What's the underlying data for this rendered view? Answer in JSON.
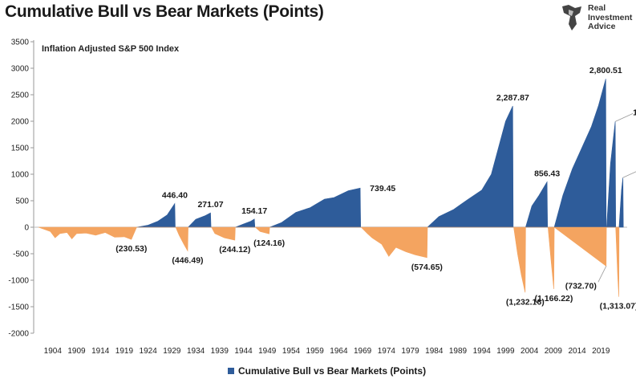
{
  "header": {
    "title": "Cumulative Bull vs Bear Markets (Points)"
  },
  "logo": {
    "icon": "bull-head-icon",
    "line1": "Real",
    "line2": "Investment",
    "line3": "Advice"
  },
  "legend": {
    "label": "Cumulative Bull vs Bear Markets (Points)"
  },
  "colors": {
    "bull": "#2e5c9a",
    "bear": "#f4a460",
    "axis": "#999999"
  },
  "chart_data": {
    "type": "area",
    "title": "Cumulative Bull vs Bear Markets (Points)",
    "subtitle": "Inflation Adjusted S&P 500 Index",
    "xlabel": "",
    "ylabel": "",
    "ylim": [
      -2000,
      3500
    ],
    "yticks": [
      3500,
      3000,
      2500,
      2000,
      1500,
      1000,
      500,
      0,
      -500,
      -1000,
      -1500,
      -2000
    ],
    "xlim": [
      1900,
      2024.5
    ],
    "xticks": [
      "1904",
      "1909",
      "1914",
      "1919",
      "1924",
      "1929",
      "1934",
      "1939",
      "1944",
      "1949",
      "1954",
      "1959",
      "1964",
      "1969",
      "1974",
      "1979",
      "1984",
      "1989",
      "1994",
      "1999",
      "2004",
      "2009",
      "2014",
      "2019"
    ],
    "series": [
      {
        "name": "Cumulative Bull vs Bear Markets (Points)",
        "color": "#2e5c9a",
        "points": [
          [
            1921.6,
            0
          ],
          [
            1924,
            40
          ],
          [
            1926,
            110
          ],
          [
            1928,
            230
          ],
          [
            1929.6,
            446.4
          ],
          [
            1929.7,
            0
          ],
          [
            1932.4,
            0
          ],
          [
            1934,
            150
          ],
          [
            1936,
            220
          ],
          [
            1937.1,
            271.07
          ],
          [
            1937.2,
            0
          ],
          [
            1942.3,
            0
          ],
          [
            1944,
            60
          ],
          [
            1945.5,
            110
          ],
          [
            1946.3,
            154.17
          ],
          [
            1946.4,
            0
          ],
          [
            1949.5,
            0
          ],
          [
            1952,
            90
          ],
          [
            1955,
            280
          ],
          [
            1958,
            370
          ],
          [
            1961,
            530
          ],
          [
            1963,
            560
          ],
          [
            1966,
            690
          ],
          [
            1968.5,
            739.45
          ],
          [
            1968.6,
            0
          ],
          [
            1982.6,
            0
          ],
          [
            1985,
            200
          ],
          [
            1988,
            330
          ],
          [
            1991,
            520
          ],
          [
            1994,
            700
          ],
          [
            1996,
            1000
          ],
          [
            1997.5,
            1500
          ],
          [
            1999,
            2000
          ],
          [
            2000.5,
            2287.87
          ],
          [
            2000.6,
            0
          ],
          [
            2003.2,
            0
          ],
          [
            2004.5,
            400
          ],
          [
            2006,
            600
          ],
          [
            2007.7,
            856.43
          ],
          [
            2007.8,
            0
          ],
          [
            2009.2,
            0
          ],
          [
            2011,
            600
          ],
          [
            2013,
            1100
          ],
          [
            2015,
            1500
          ],
          [
            2017,
            1900
          ],
          [
            2018.5,
            2300
          ],
          [
            2020.0,
            2800.51
          ],
          [
            2020.1,
            0
          ],
          [
            2020.2,
            0
          ],
          [
            2021,
            1200
          ],
          [
            2022.0,
            1994.81
          ],
          [
            2022.1,
            0
          ],
          [
            2022.8,
            0
          ],
          [
            2023.3,
            700
          ],
          [
            2023.6,
            936.29
          ],
          [
            2023.7,
            0
          ]
        ]
      },
      {
        "name": "Bear Markets",
        "color": "#f4a460",
        "points": [
          [
            1901,
            0
          ],
          [
            1903.5,
            -80
          ],
          [
            1904.5,
            -200
          ],
          [
            1905.5,
            -120
          ],
          [
            1907,
            -100
          ],
          [
            1908,
            -220
          ],
          [
            1909,
            -120
          ],
          [
            1911,
            -110
          ],
          [
            1913,
            -150
          ],
          [
            1915,
            -100
          ],
          [
            1917,
            -190
          ],
          [
            1919,
            -180
          ],
          [
            1920.5,
            -230.53
          ],
          [
            1921.6,
            0
          ],
          [
            1929.8,
            0
          ],
          [
            1930.5,
            -150
          ],
          [
            1931.5,
            -320
          ],
          [
            1932.3,
            -446.49
          ],
          [
            1932.4,
            0
          ],
          [
            1937.3,
            0
          ],
          [
            1938,
            -120
          ],
          [
            1940,
            -200
          ],
          [
            1942.2,
            -244.12
          ],
          [
            1942.3,
            0
          ],
          [
            1946.5,
            0
          ],
          [
            1947.5,
            -80
          ],
          [
            1949.4,
            -124.16
          ],
          [
            1949.5,
            0
          ],
          [
            1968.7,
            0
          ],
          [
            1970,
            -120
          ],
          [
            1971,
            -200
          ],
          [
            1973,
            -320
          ],
          [
            1974.5,
            -550
          ],
          [
            1976,
            -380
          ],
          [
            1978,
            -460
          ],
          [
            1980,
            -520
          ],
          [
            1982.5,
            -574.65
          ],
          [
            1982.6,
            0
          ],
          [
            2000.7,
            0
          ],
          [
            2001.5,
            -500
          ],
          [
            2002.3,
            -900
          ],
          [
            2003.1,
            -1232.16
          ],
          [
            2003.2,
            0
          ],
          [
            2007.9,
            0
          ],
          [
            2008.5,
            -600
          ],
          [
            2009.1,
            -1166.22
          ],
          [
            2009.2,
            0
          ],
          [
            2020.1,
            -732.7
          ],
          [
            2020.15,
            0
          ],
          [
            2022.1,
            0
          ],
          [
            2022.5,
            -900
          ],
          [
            2022.75,
            -1313.07
          ],
          [
            2022.8,
            0
          ]
        ]
      }
    ],
    "annotations": [
      {
        "text": "446.40",
        "x": 1929.6,
        "y": 446.4,
        "anchor": "above"
      },
      {
        "text": "271.07",
        "x": 1937.1,
        "y": 271.07,
        "anchor": "above"
      },
      {
        "text": "154.17",
        "x": 1946.3,
        "y": 154.17,
        "anchor": "above"
      },
      {
        "text": "739.45",
        "x": 1968.5,
        "y": 739.45,
        "anchor": "right"
      },
      {
        "text": "2,287.87",
        "x": 2000.5,
        "y": 2287.87,
        "anchor": "above"
      },
      {
        "text": "856.43",
        "x": 2007.7,
        "y": 856.43,
        "anchor": "above"
      },
      {
        "text": "2,800.51",
        "x": 2020.0,
        "y": 2800.51,
        "anchor": "above"
      },
      {
        "text": "1,994.81",
        "x": 2022.0,
        "y": 1994.81,
        "anchor": "right-leader"
      },
      {
        "text": "936.29",
        "x": 2023.6,
        "y": 936.29,
        "anchor": "right-leader"
      },
      {
        "text": "(230.53)",
        "x": 1920.5,
        "y": -230.53,
        "anchor": "below"
      },
      {
        "text": "(446.49)",
        "x": 1932.3,
        "y": -446.49,
        "anchor": "below"
      },
      {
        "text": "(244.12)",
        "x": 1942.2,
        "y": -244.12,
        "anchor": "below"
      },
      {
        "text": "(124.16)",
        "x": 1949.4,
        "y": -124.16,
        "anchor": "below"
      },
      {
        "text": "(574.65)",
        "x": 1982.5,
        "y": -574.65,
        "anchor": "below"
      },
      {
        "text": "(1,232.16)",
        "x": 2003.1,
        "y": -1232.16,
        "anchor": "below"
      },
      {
        "text": "(1,166.22)",
        "x": 2009.1,
        "y": -1166.22,
        "anchor": "below"
      },
      {
        "text": "(732.70)",
        "x": 2020.1,
        "y": -732.7,
        "anchor": "left-leader"
      },
      {
        "text": "(1,313.07)",
        "x": 2022.75,
        "y": -1313.07,
        "anchor": "below"
      }
    ]
  }
}
